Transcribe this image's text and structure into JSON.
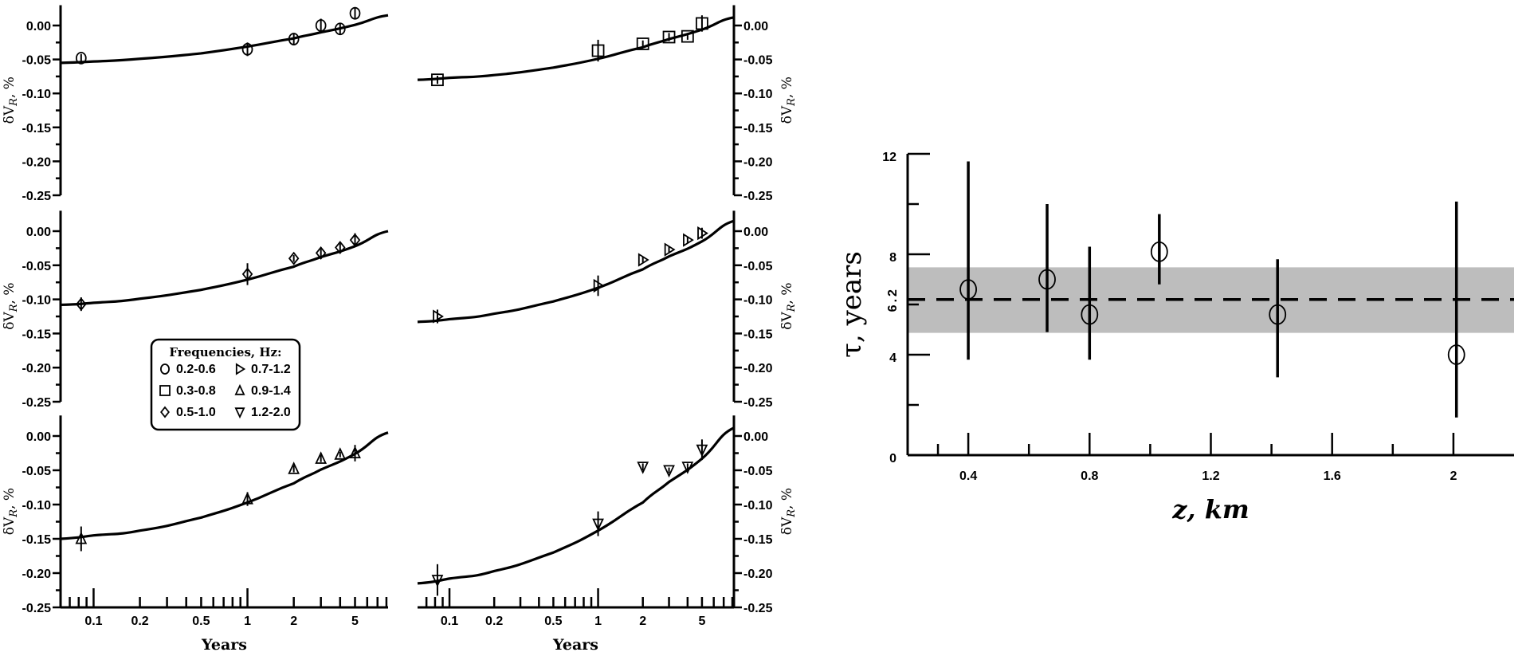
{
  "legend": {
    "title": "Frequencies, Hz:",
    "items": [
      {
        "marker": "circle",
        "label": "0.2-0.6"
      },
      {
        "marker": "square",
        "label": "0.3-0.8"
      },
      {
        "marker": "diamond",
        "label": "0.5-1.0"
      },
      {
        "marker": "triangle-right",
        "label": "0.7-1.2"
      },
      {
        "marker": "triangle-up",
        "label": "0.9-1.4"
      },
      {
        "marker": "triangle-down",
        "label": "1.2-2.0"
      }
    ]
  },
  "chart_data": [
    {
      "type": "scatter",
      "panel": "top-left",
      "marker": "circle",
      "frequency": "0.2-0.6",
      "xlabel": "Years",
      "ylabel": "δV_R, %",
      "xscale": "log",
      "xlim": [
        0.061,
        8.2
      ],
      "ylim": [
        -0.25,
        0.03
      ],
      "x": [
        0.083,
        1,
        2,
        3,
        4,
        5
      ],
      "y": [
        -0.048,
        -0.035,
        -0.02,
        0.0,
        -0.005,
        0.018
      ],
      "err": [
        0.006,
        0.01,
        0.008,
        0.01,
        0.008,
        0.008
      ],
      "fit_x": [
        0.061,
        0.1,
        0.2,
        0.5,
        1,
        2,
        3,
        5,
        8.2
      ],
      "fit_y": [
        -0.055,
        -0.053,
        -0.049,
        -0.041,
        -0.031,
        -0.019,
        -0.01,
        0.001,
        0.015
      ]
    },
    {
      "type": "scatter",
      "panel": "top-right",
      "marker": "square",
      "frequency": "0.3-0.8",
      "xlabel": "Years",
      "ylabel": "δV_R, %",
      "xscale": "log",
      "xlim": [
        0.061,
        8.2
      ],
      "ylim": [
        -0.25,
        0.03
      ],
      "x": [
        0.083,
        1,
        2,
        3,
        4,
        5
      ],
      "y": [
        -0.08,
        -0.037,
        -0.027,
        -0.017,
        -0.016,
        0.003
      ],
      "err": [
        0.006,
        0.016,
        0.005,
        0.006,
        0.005,
        0.012
      ],
      "fit_x": [
        0.061,
        0.1,
        0.2,
        0.5,
        1,
        2,
        3,
        5,
        8.2
      ],
      "fit_y": [
        -0.08,
        -0.077,
        -0.073,
        -0.062,
        -0.049,
        -0.032,
        -0.02,
        -0.006,
        0.012
      ]
    },
    {
      "type": "scatter",
      "panel": "middle-left",
      "marker": "diamond",
      "frequency": "0.5-1.0",
      "xlabel": "Years",
      "ylabel": "δV_R, %",
      "xscale": "log",
      "xlim": [
        0.061,
        8.2
      ],
      "ylim": [
        -0.25,
        0.03
      ],
      "x": [
        0.083,
        1,
        2,
        3,
        4,
        5
      ],
      "y": [
        -0.107,
        -0.063,
        -0.04,
        -0.032,
        -0.024,
        -0.013
      ],
      "err": [
        0.01,
        0.016,
        0.005,
        0.006,
        0.006,
        0.01
      ],
      "fit_x": [
        0.061,
        0.1,
        0.2,
        0.5,
        1,
        2,
        3,
        5,
        8.2
      ],
      "fit_y": [
        -0.108,
        -0.105,
        -0.099,
        -0.086,
        -0.071,
        -0.052,
        -0.038,
        -0.022,
        0.0
      ]
    },
    {
      "type": "scatter",
      "panel": "middle-right",
      "marker": "triangle-right",
      "frequency": "0.7-1.2",
      "xlabel": "Years",
      "ylabel": "δV_R, %",
      "xscale": "log",
      "xlim": [
        0.061,
        8.2
      ],
      "ylim": [
        -0.25,
        0.03
      ],
      "x": [
        0.083,
        1,
        2,
        3,
        4,
        5
      ],
      "y": [
        -0.125,
        -0.08,
        -0.042,
        -0.027,
        -0.013,
        -0.003
      ],
      "err": [
        0.01,
        0.015,
        0.004,
        0.005,
        0.005,
        0.008
      ],
      "fit_x": [
        0.061,
        0.1,
        0.2,
        0.5,
        1,
        2,
        3,
        5,
        8.2
      ],
      "fit_y": [
        -0.133,
        -0.129,
        -0.121,
        -0.103,
        -0.083,
        -0.056,
        -0.037,
        -0.015,
        0.015
      ]
    },
    {
      "type": "scatter",
      "panel": "bottom-left",
      "marker": "triangle-up",
      "frequency": "0.9-1.4",
      "xlabel": "Years",
      "ylabel": "δV_R, %",
      "xscale": "log",
      "xlim": [
        0.061,
        8.2
      ],
      "ylim": [
        -0.25,
        0.03
      ],
      "x": [
        0.083,
        1,
        2,
        3,
        4,
        5
      ],
      "y": [
        -0.15,
        -0.092,
        -0.048,
        -0.033,
        -0.027,
        -0.025
      ],
      "err": [
        0.018,
        0.01,
        0.005,
        0.005,
        0.004,
        0.012
      ],
      "fit_x": [
        0.061,
        0.1,
        0.2,
        0.5,
        1,
        2,
        3,
        5,
        8.2
      ],
      "fit_y": [
        -0.15,
        -0.145,
        -0.138,
        -0.119,
        -0.097,
        -0.069,
        -0.049,
        -0.026,
        0.005
      ]
    },
    {
      "type": "scatter",
      "panel": "bottom-right",
      "marker": "triangle-down",
      "frequency": "1.2-2.0",
      "xlabel": "Years",
      "ylabel": "δV_R, %",
      "xscale": "log",
      "xlim": [
        0.061,
        8.2
      ],
      "ylim": [
        -0.25,
        0.03
      ],
      "x": [
        0.083,
        1,
        2,
        3,
        4,
        5
      ],
      "y": [
        -0.21,
        -0.128,
        -0.045,
        -0.05,
        -0.045,
        -0.02
      ],
      "err": [
        0.023,
        0.018,
        0.005,
        0.004,
        0.005,
        0.015
      ],
      "fit_x": [
        0.061,
        0.1,
        0.2,
        0.5,
        1,
        2,
        3,
        5,
        8.2
      ],
      "fit_y": [
        -0.215,
        -0.208,
        -0.197,
        -0.17,
        -0.138,
        -0.097,
        -0.067,
        -0.033,
        0.012
      ]
    },
    {
      "type": "scatter",
      "panel": "tau-vs-depth",
      "marker": "circle",
      "xlabel": "z, km",
      "ylabel": "τ, years",
      "xlim": [
        0.2,
        2.2
      ],
      "ylim": [
        0,
        12
      ],
      "x": [
        0.4,
        0.66,
        0.8,
        1.03,
        1.42,
        2.01
      ],
      "y": [
        6.6,
        7.0,
        5.6,
        8.1,
        5.6,
        4.0
      ],
      "err_low": [
        3.8,
        4.9,
        3.8,
        6.8,
        3.1,
        1.5
      ],
      "err_high": [
        11.7,
        10.0,
        8.3,
        9.6,
        7.8,
        10.1
      ],
      "mean_line": 6.2,
      "mean_label": "6.2",
      "band": [
        4.87,
        7.48
      ],
      "band_color": "#bdbdbd",
      "x_ticks": [
        0.4,
        0.8,
        1.2,
        1.6,
        2.0
      ],
      "x_tick_labels": [
        "0.4",
        "0.8",
        "1.2",
        "1.6",
        "2"
      ],
      "y_ticks": [
        0,
        4,
        8,
        12
      ],
      "y_tick_labels": [
        "0",
        "4",
        "8",
        "12"
      ]
    }
  ],
  "panel_axis": {
    "x_tick_labels": [
      {
        "v": 0.1,
        "t": "0.1"
      },
      {
        "v": 0.2,
        "t": "0.2"
      },
      {
        "v": 0.5,
        "t": "0.5"
      },
      {
        "v": 1,
        "t": "1"
      },
      {
        "v": 2,
        "t": "2"
      },
      {
        "v": 5,
        "t": "5"
      }
    ],
    "y_tick_labels": [
      "0.00",
      "-0.05",
      "-0.10",
      "-0.15",
      "-0.20",
      "-0.25"
    ],
    "ylabel_main": "δV",
    "ylabel_sub": "R",
    "ylabel_unit": ", %"
  }
}
